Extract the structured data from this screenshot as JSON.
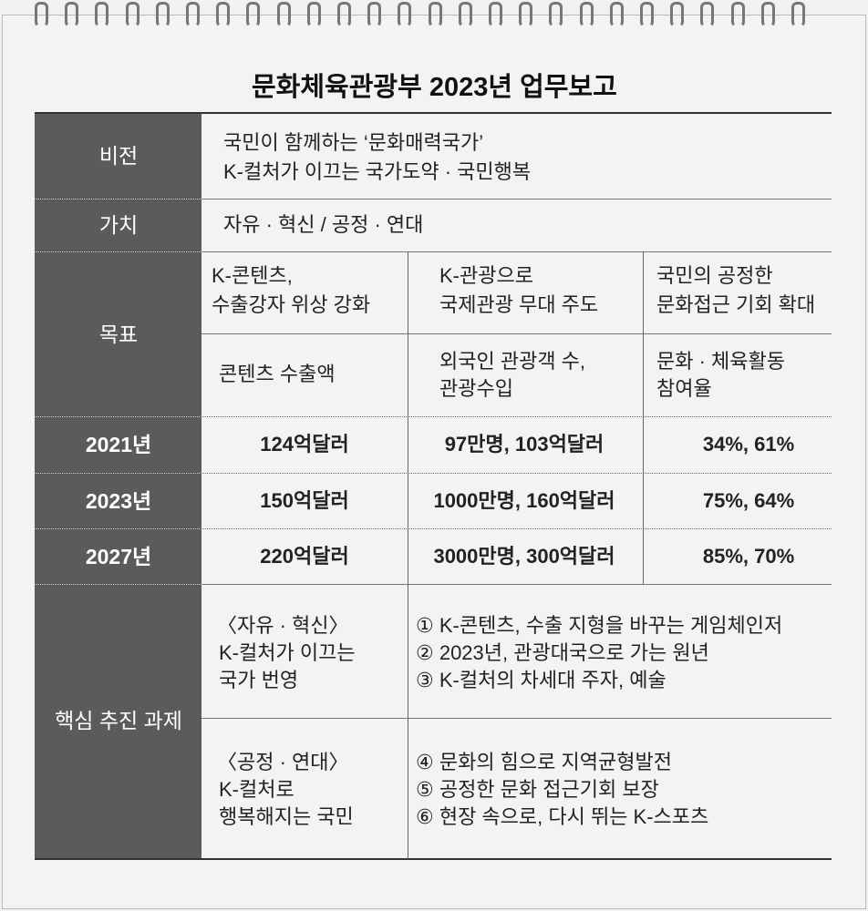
{
  "title": "문화체육관광부 2023년 업무보고",
  "vision": {
    "label": "비전",
    "lines": [
      "국민이 함께하는 ‘문화매력국가’",
      "K-컬처가 이끄는 국가도약 · 국민행복"
    ]
  },
  "values": {
    "label": "가치",
    "text": "자유 · 혁신 / 공정 · 연대"
  },
  "goals": {
    "label": "목표",
    "items": [
      {
        "goal": [
          "K-콘텐츠,",
          "수출강자 위상 강화"
        ],
        "indicator": [
          "콘텐츠 수출액"
        ]
      },
      {
        "goal": [
          "K-관광으로",
          "국제관광 무대 주도"
        ],
        "indicator": [
          "외국인 관광객 수,",
          "관광수입"
        ]
      },
      {
        "goal": [
          "국민의 공정한",
          "문화접근 기회 확대"
        ],
        "indicator": [
          "문화 · 체육활동",
          "참여율"
        ]
      }
    ]
  },
  "years": [
    {
      "year": "2021년",
      "cells": [
        "124억달러",
        "97만명, 103억달러",
        "34%, 61%"
      ]
    },
    {
      "year": "2023년",
      "cells": [
        "150억달러",
        "1000만명, 160억달러",
        "75%, 64%"
      ]
    },
    {
      "year": "2027년",
      "cells": [
        "220억달러",
        "3000만명, 300억달러",
        "85%, 70%"
      ]
    }
  ],
  "tasks": {
    "label": "핵심 추진 과제",
    "groups": [
      {
        "heading": "〈자유 · 혁신〉",
        "lines": [
          "K-컬처가 이끄는",
          "국가 번영"
        ],
        "items": [
          "① K-콘텐츠, 수출 지형을 바꾸는 게임체인저",
          "② 2023년, 관광대국으로 가는 원년",
          "③ K-컬처의 차세대 주자, 예술"
        ]
      },
      {
        "heading": "〈공정 · 연대〉",
        "lines": [
          "K-컬처로",
          "행복해지는 국민"
        ],
        "items": [
          "④ 문화의 힘으로 지역균형발전",
          "⑤ 공정한 문화 접근기회 보장",
          "⑥ 현장 속으로, 다시 뛰는 K-스포츠"
        ]
      }
    ]
  }
}
